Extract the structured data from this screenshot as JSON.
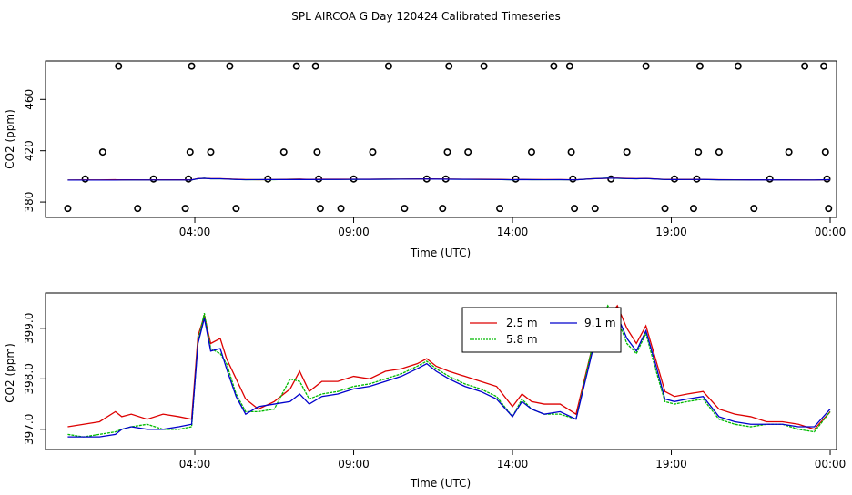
{
  "title": "SPL AIRCOA G  Day 120424  Calibrated Timeseries",
  "colors": {
    "red": "#dd0000",
    "green": "#00bb00",
    "blue": "#0000cc",
    "axis": "#000000"
  },
  "chart_data": [
    {
      "type": "scatter+line",
      "title": "SPL AIRCOA G  Day 120424  Calibrated Timeseries",
      "xlabel": "Time (UTC)",
      "ylabel": "CO2 (ppm)",
      "xlim": [
        -0.7,
        24.2
      ],
      "ylim": [
        368,
        490
      ],
      "xticks": [
        4,
        9,
        14,
        19,
        24
      ],
      "xtick_labels": [
        "04:00",
        "09:00",
        "14:00",
        "19:00",
        "00:00"
      ],
      "yticks": [
        380,
        420,
        460
      ],
      "ytick_labels": [
        "380",
        "420",
        "460"
      ],
      "calibration_points": [
        {
          "x": 0.0,
          "y": 375
        },
        {
          "x": 0.55,
          "y": 398
        },
        {
          "x": 1.1,
          "y": 419
        },
        {
          "x": 1.6,
          "y": 486
        },
        {
          "x": 2.2,
          "y": 375
        },
        {
          "x": 2.7,
          "y": 398
        },
        {
          "x": 3.7,
          "y": 375
        },
        {
          "x": 3.8,
          "y": 398
        },
        {
          "x": 3.85,
          "y": 419
        },
        {
          "x": 3.9,
          "y": 486
        },
        {
          "x": 4.5,
          "y": 419
        },
        {
          "x": 5.1,
          "y": 486
        },
        {
          "x": 5.3,
          "y": 375
        },
        {
          "x": 6.3,
          "y": 398
        },
        {
          "x": 6.8,
          "y": 419
        },
        {
          "x": 7.2,
          "y": 486
        },
        {
          "x": 7.8,
          "y": 486
        },
        {
          "x": 7.85,
          "y": 419
        },
        {
          "x": 7.9,
          "y": 398
        },
        {
          "x": 7.95,
          "y": 375
        },
        {
          "x": 8.6,
          "y": 375
        },
        {
          "x": 9.0,
          "y": 398
        },
        {
          "x": 9.6,
          "y": 419
        },
        {
          "x": 10.1,
          "y": 486
        },
        {
          "x": 10.6,
          "y": 375
        },
        {
          "x": 11.3,
          "y": 398
        },
        {
          "x": 11.8,
          "y": 375
        },
        {
          "x": 11.9,
          "y": 398
        },
        {
          "x": 11.95,
          "y": 419
        },
        {
          "x": 12.0,
          "y": 486
        },
        {
          "x": 12.6,
          "y": 419
        },
        {
          "x": 13.1,
          "y": 486
        },
        {
          "x": 13.6,
          "y": 375
        },
        {
          "x": 14.1,
          "y": 398
        },
        {
          "x": 14.6,
          "y": 419
        },
        {
          "x": 15.3,
          "y": 486
        },
        {
          "x": 15.8,
          "y": 486
        },
        {
          "x": 15.85,
          "y": 419
        },
        {
          "x": 15.9,
          "y": 398
        },
        {
          "x": 15.95,
          "y": 375
        },
        {
          "x": 16.6,
          "y": 375
        },
        {
          "x": 17.1,
          "y": 398
        },
        {
          "x": 17.6,
          "y": 419
        },
        {
          "x": 18.2,
          "y": 486
        },
        {
          "x": 18.8,
          "y": 375
        },
        {
          "x": 19.1,
          "y": 398
        },
        {
          "x": 19.7,
          "y": 375
        },
        {
          "x": 19.8,
          "y": 398
        },
        {
          "x": 19.85,
          "y": 419
        },
        {
          "x": 19.9,
          "y": 486
        },
        {
          "x": 20.5,
          "y": 419
        },
        {
          "x": 21.1,
          "y": 486
        },
        {
          "x": 21.6,
          "y": 375
        },
        {
          "x": 22.1,
          "y": 398
        },
        {
          "x": 22.7,
          "y": 419
        },
        {
          "x": 23.2,
          "y": 486
        },
        {
          "x": 23.8,
          "y": 486
        },
        {
          "x": 23.85,
          "y": 419
        },
        {
          "x": 23.9,
          "y": 398
        },
        {
          "x": 23.95,
          "y": 375
        }
      ],
      "line_level": 397.5
    },
    {
      "type": "line",
      "xlabel": "Time (UTC)",
      "ylabel": "CO2 (ppm)",
      "xlim": [
        -0.7,
        24.2
      ],
      "ylim": [
        396.6,
        399.7
      ],
      "xticks": [
        4,
        9,
        14,
        19,
        24
      ],
      "xtick_labels": [
        "04:00",
        "09:00",
        "14:00",
        "19:00",
        "00:00"
      ],
      "yticks": [
        397.0,
        398.0,
        399.0
      ],
      "ytick_labels": [
        "397.0",
        "398.0",
        "399.0"
      ],
      "legend_position": "top-center",
      "series": [
        {
          "name": "2.5 m",
          "color": "#dd0000",
          "x": [
            0,
            0.5,
            1,
            1.5,
            1.7,
            2,
            2.5,
            3,
            3.5,
            3.9,
            4.1,
            4.3,
            4.5,
            4.8,
            5.0,
            5.3,
            5.6,
            6,
            6.5,
            7,
            7.3,
            7.6,
            8,
            8.5,
            9,
            9.5,
            10,
            10.5,
            11,
            11.3,
            11.6,
            12,
            12.5,
            13,
            13.5,
            14,
            14.3,
            14.6,
            15,
            15.5,
            16,
            16.5,
            17,
            17.3,
            17.6,
            17.9,
            18.2,
            18.5,
            18.8,
            19.1,
            19.5,
            20,
            20.5,
            21,
            21.5,
            22,
            22.5,
            23,
            23.5,
            24
          ],
          "values": [
            397.05,
            397.1,
            397.15,
            397.35,
            397.25,
            397.3,
            397.2,
            397.3,
            397.25,
            397.2,
            398.85,
            399.25,
            398.7,
            398.8,
            398.4,
            398.0,
            397.6,
            397.4,
            397.55,
            397.8,
            398.15,
            397.75,
            397.95,
            397.95,
            398.05,
            398.0,
            398.15,
            398.2,
            398.3,
            398.4,
            398.25,
            398.15,
            398.05,
            397.95,
            397.85,
            397.45,
            397.7,
            397.55,
            397.5,
            397.5,
            397.3,
            398.6,
            399.2,
            399.45,
            399.0,
            398.7,
            399.05,
            398.4,
            397.75,
            397.65,
            397.7,
            397.75,
            397.4,
            397.3,
            397.25,
            397.15,
            397.15,
            397.1,
            397.0,
            397.35
          ]
        },
        {
          "name": "5.8 m",
          "color": "#00bb00",
          "x": [
            0,
            0.5,
            1,
            1.5,
            1.7,
            2,
            2.5,
            3,
            3.5,
            3.9,
            4.1,
            4.3,
            4.5,
            4.8,
            5.0,
            5.3,
            5.6,
            6,
            6.5,
            7,
            7.3,
            7.6,
            8,
            8.5,
            9,
            9.5,
            10,
            10.5,
            11,
            11.3,
            11.6,
            12,
            12.5,
            13,
            13.5,
            14,
            14.3,
            14.6,
            15,
            15.5,
            16,
            16.5,
            17,
            17.3,
            17.6,
            17.9,
            18.2,
            18.5,
            18.8,
            19.1,
            19.5,
            20,
            20.5,
            21,
            21.5,
            22,
            22.5,
            23,
            23.5,
            24
          ],
          "values": [
            396.9,
            396.85,
            396.9,
            396.95,
            397.0,
            397.05,
            397.1,
            397.0,
            397.0,
            397.05,
            398.75,
            399.3,
            398.6,
            398.5,
            398.3,
            397.7,
            397.35,
            397.35,
            397.4,
            398.0,
            397.95,
            397.6,
            397.7,
            397.75,
            397.85,
            397.9,
            398.0,
            398.1,
            398.25,
            398.35,
            398.2,
            398.05,
            397.9,
            397.8,
            397.65,
            397.25,
            397.6,
            397.4,
            397.3,
            397.3,
            397.2,
            398.6,
            399.45,
            399.2,
            398.7,
            398.5,
            398.9,
            398.2,
            397.55,
            397.5,
            397.55,
            397.6,
            397.2,
            397.1,
            397.05,
            397.1,
            397.1,
            397.0,
            396.95,
            397.35
          ]
        },
        {
          "name": "9.1 m",
          "color": "#0000cc",
          "x": [
            0,
            0.5,
            1,
            1.5,
            1.7,
            2,
            2.5,
            3,
            3.5,
            3.9,
            4.1,
            4.3,
            4.5,
            4.8,
            5.0,
            5.3,
            5.6,
            6,
            6.5,
            7,
            7.3,
            7.6,
            8,
            8.5,
            9,
            9.5,
            10,
            10.5,
            11,
            11.3,
            11.6,
            12,
            12.5,
            13,
            13.5,
            14,
            14.3,
            14.6,
            15,
            15.5,
            16,
            16.5,
            17,
            17.3,
            17.6,
            17.9,
            18.2,
            18.5,
            18.8,
            19.1,
            19.5,
            20,
            20.5,
            21,
            21.5,
            22,
            22.5,
            23,
            23.5,
            24
          ],
          "values": [
            396.85,
            396.85,
            396.85,
            396.9,
            397.0,
            397.05,
            397.0,
            397.0,
            397.05,
            397.1,
            398.7,
            399.2,
            398.55,
            398.6,
            398.2,
            397.65,
            397.3,
            397.45,
            397.5,
            397.55,
            397.7,
            397.5,
            397.65,
            397.7,
            397.8,
            397.85,
            397.95,
            398.05,
            398.2,
            398.3,
            398.15,
            398.0,
            397.85,
            397.75,
            397.6,
            397.25,
            397.55,
            397.4,
            397.3,
            397.35,
            397.2,
            398.5,
            399.35,
            399.25,
            398.8,
            398.55,
            398.95,
            398.3,
            397.6,
            397.55,
            397.6,
            397.65,
            397.25,
            397.15,
            397.1,
            397.1,
            397.1,
            397.05,
            397.05,
            397.4
          ]
        }
      ]
    }
  ]
}
